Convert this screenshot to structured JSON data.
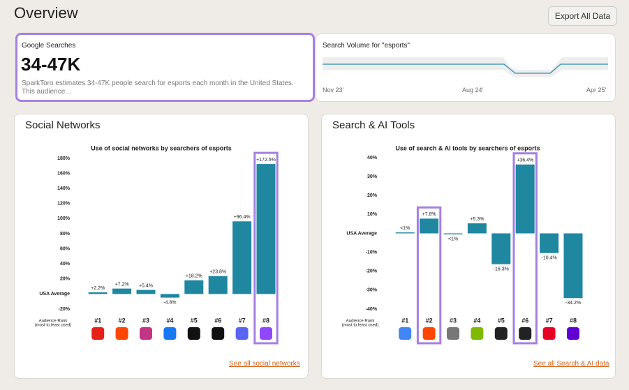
{
  "header": {
    "title": "Overview",
    "export_button": "Export All Data"
  },
  "searches_card": {
    "label": "Google Searches",
    "value": "34-47K",
    "description": "SparkToro estimates 34-47K people search for esports each month in the United States. This audience..."
  },
  "volume_card": {
    "title": "Search Volume for \"esports\"",
    "x_labels": [
      "Nov 23'",
      "Aug 24'",
      "Apr 25'"
    ]
  },
  "social_card": {
    "title": "Social Networks",
    "link": "See all social networks"
  },
  "search_card": {
    "title": "Search & AI Tools",
    "link": "See all Search & AI data"
  },
  "chart_data": [
    {
      "type": "bar",
      "title": "Use of social networks by searchers of esports",
      "rank_label": [
        "Audience Rank",
        "(most to least used)"
      ],
      "categories": [
        "#1",
        "#2",
        "#3",
        "#4",
        "#5",
        "#6",
        "#7",
        "#8"
      ],
      "values": [
        2.2,
        7.2,
        5.4,
        -4.8,
        18.2,
        23.8,
        96.4,
        172.5
      ],
      "value_labels": [
        "+2.2%",
        "+7.2%",
        "+5.4%",
        "-4.8%",
        "+18.2%",
        "+23.8%",
        "+96.4%",
        "+172.5%"
      ],
      "color": "#1f87a0",
      "highlight": [
        7
      ],
      "ylim": [
        -20,
        180
      ],
      "yticks": [
        {
          "value": -20,
          "label": "-20%"
        },
        {
          "value": 0,
          "label": "USA Average"
        },
        {
          "value": 20,
          "label": "20%"
        },
        {
          "value": 40,
          "label": "40%"
        },
        {
          "value": 60,
          "label": "60%"
        },
        {
          "value": 80,
          "label": "80%"
        },
        {
          "value": 100,
          "label": "100%"
        },
        {
          "value": 120,
          "label": "120%"
        },
        {
          "value": 140,
          "label": "140%"
        },
        {
          "value": 160,
          "label": "160%"
        },
        {
          "value": 180,
          "label": "180%"
        }
      ]
    },
    {
      "type": "bar",
      "title": "Use of search & AI tools by searchers of esports",
      "rank_label": [
        "Audience Rank",
        "(most to least used)"
      ],
      "categories": [
        "#1",
        "#2",
        "#3",
        "#4",
        "#5",
        "#6",
        "#7",
        "#8"
      ],
      "values": [
        0.5,
        7.8,
        -0.5,
        5.3,
        -16.3,
        36.4,
        -10.4,
        -34.2
      ],
      "value_labels": [
        "<1%",
        "+7.8%",
        "<1%",
        "+5.3%",
        "-16.3%",
        "+36.4%",
        "-10.4%",
        "-34.2%"
      ],
      "color": "#1f87a0",
      "highlight": [
        1,
        5
      ],
      "ylim": [
        -40,
        40
      ],
      "yticks": [
        {
          "value": -40,
          "label": "-40%"
        },
        {
          "value": -30,
          "label": "-30%"
        },
        {
          "value": -20,
          "label": "-20%"
        },
        {
          "value": -10,
          "label": "-10%"
        },
        {
          "value": 0,
          "label": "USA Average"
        },
        {
          "value": 10,
          "label": "10%"
        },
        {
          "value": 20,
          "label": "20%"
        },
        {
          "value": 30,
          "label": "30%"
        },
        {
          "value": 40,
          "label": "40%"
        }
      ]
    }
  ]
}
